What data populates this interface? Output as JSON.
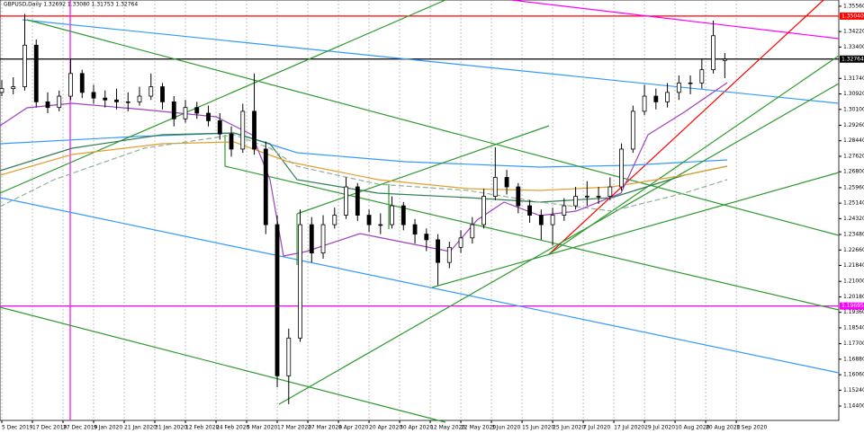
{
  "chart_data": {
    "type": "candlestick",
    "title": "GBPUSD,Daily  1.32692 1.33080 1.31753 1.32764",
    "x": [
      0,
      3,
      6,
      9,
      12,
      15,
      18,
      21,
      24,
      27,
      30,
      33,
      36,
      39,
      42,
      45,
      48,
      51,
      54,
      57,
      60,
      63,
      66,
      69,
      72,
      75,
      78,
      81,
      84,
      87,
      90,
      93,
      96,
      99,
      102,
      105,
      108,
      111,
      114,
      117,
      120,
      123,
      126,
      129,
      132,
      135,
      138,
      141,
      144,
      147,
      150,
      153,
      156,
      159,
      162,
      165,
      168,
      171,
      174,
      177,
      180,
      183,
      186,
      189
    ],
    "open": [
      1.31,
      1.312,
      1.313,
      1.335,
      1.305,
      1.302,
      1.308,
      1.32,
      1.31,
      1.307,
      1.306,
      1.305,
      1.305,
      1.308,
      1.313,
      1.305,
      1.296,
      1.302,
      1.299,
      1.295,
      1.288,
      1.28,
      1.3,
      1.28,
      1.24,
      1.16,
      1.18,
      1.24,
      1.225,
      1.24,
      1.245,
      1.26,
      1.245,
      1.24,
      1.24,
      1.25,
      1.24,
      1.235,
      1.232,
      1.22,
      1.228,
      1.233,
      1.24,
      1.255,
      1.265,
      1.26,
      1.25,
      1.245,
      1.24,
      1.245,
      1.25,
      1.255,
      1.255,
      1.255,
      1.26,
      1.28,
      1.3,
      1.308,
      1.305,
      1.31,
      1.315,
      1.315,
      1.322,
      1.32692
    ],
    "high": [
      1.3165,
      1.318,
      1.3515,
      1.338,
      1.31,
      1.311,
      1.328,
      1.322,
      1.314,
      1.311,
      1.312,
      1.31,
      1.313,
      1.32,
      1.315,
      1.308,
      1.306,
      1.305,
      1.303,
      1.299,
      1.292,
      1.304,
      1.32,
      1.284,
      1.245,
      1.185,
      1.248,
      1.244,
      1.245,
      1.249,
      1.265,
      1.262,
      1.248,
      1.246,
      1.255,
      1.252,
      1.243,
      1.238,
      1.235,
      1.231,
      1.237,
      1.244,
      1.259,
      1.281,
      1.269,
      1.262,
      1.253,
      1.248,
      1.249,
      1.254,
      1.26,
      1.263,
      1.26,
      1.265,
      1.283,
      1.303,
      1.314,
      1.312,
      1.315,
      1.319,
      1.319,
      1.328,
      1.348,
      1.3308
    ],
    "low": [
      1.308,
      1.309,
      1.311,
      1.302,
      1.299,
      1.3,
      1.306,
      1.307,
      1.304,
      1.302,
      1.301,
      1.3,
      1.303,
      1.306,
      1.301,
      1.292,
      1.294,
      1.296,
      1.292,
      1.285,
      1.276,
      1.278,
      1.277,
      1.235,
      1.154,
      1.145,
      1.178,
      1.22,
      1.222,
      1.238,
      1.243,
      1.242,
      1.236,
      1.235,
      1.238,
      1.237,
      1.23,
      1.226,
      1.208,
      1.217,
      1.225,
      1.23,
      1.238,
      1.253,
      1.256,
      1.246,
      1.241,
      1.232,
      1.229,
      1.242,
      1.248,
      1.25,
      1.251,
      1.253,
      1.258,
      1.278,
      1.298,
      1.301,
      1.302,
      1.306,
      1.309,
      1.312,
      1.32,
      1.31753
    ],
    "close": [
      1.312,
      1.313,
      1.335,
      1.305,
      1.302,
      1.308,
      1.32,
      1.31,
      1.307,
      1.306,
      1.305,
      1.305,
      1.308,
      1.313,
      1.305,
      1.296,
      1.302,
      1.299,
      1.295,
      1.288,
      1.28,
      1.3,
      1.28,
      1.24,
      1.16,
      1.18,
      1.24,
      1.225,
      1.24,
      1.245,
      1.26,
      1.245,
      1.24,
      1.24,
      1.25,
      1.24,
      1.235,
      1.232,
      1.22,
      1.228,
      1.233,
      1.24,
      1.255,
      1.265,
      1.26,
      1.25,
      1.245,
      1.24,
      1.245,
      1.25,
      1.255,
      1.255,
      1.255,
      1.26,
      1.28,
      1.3,
      1.308,
      1.305,
      1.31,
      1.315,
      1.315,
      1.322,
      1.34,
      1.32764
    ],
    "xlim": [
      -0.47,
      218.8
    ],
    "ylim": [
      1.1364,
      1.3589
    ],
    "xticks": [
      {
        "value": 0,
        "label": "5 Dec 2019"
      },
      {
        "value": 8,
        "label": "17 Dec 2019"
      },
      {
        "value": 16,
        "label": "27 Dec 2019"
      },
      {
        "value": 24,
        "label": "9 Jan 2020"
      },
      {
        "value": 32,
        "label": "21 Jan 2020"
      },
      {
        "value": 40,
        "label": "31 Jan 2020"
      },
      {
        "value": 48,
        "label": "12 Feb 2020"
      },
      {
        "value": 56,
        "label": "24 Feb 2020"
      },
      {
        "value": 64,
        "label": "5 Mar 2020"
      },
      {
        "value": 72,
        "label": "17 Mar 2020"
      },
      {
        "value": 80,
        "label": "27 Mar 2020"
      },
      {
        "value": 88,
        "label": "8 Apr 2020"
      },
      {
        "value": 96,
        "label": "20 Apr 2020"
      },
      {
        "value": 104,
        "label": "30 Apr 2020"
      },
      {
        "value": 112,
        "label": "12 May 2020"
      },
      {
        "value": 120,
        "label": "22 May 2020"
      },
      {
        "value": 128,
        "label": "3 Jun 2020"
      },
      {
        "value": 136,
        "label": "15 Jun 2020"
      },
      {
        "value": 144,
        "label": "25 Jun 2020"
      },
      {
        "value": 152,
        "label": "7 Jul 2020"
      },
      {
        "value": 160,
        "label": "17 Jul 2020"
      },
      {
        "value": 168,
        "label": "29 Jul 2020"
      },
      {
        "value": 176,
        "label": "10 Aug 2020"
      },
      {
        "value": 184,
        "label": "20 Aug 2020"
      },
      {
        "value": 192,
        "label": "1 Sep 2020"
      }
    ],
    "yticks": [
      {
        "value": 1.3556,
        "label": "1.35560"
      },
      {
        "value": 1.3422,
        "label": "1.34220"
      },
      {
        "value": 1.334,
        "label": "1.33400"
      },
      {
        "value": 1.3174,
        "label": "1.31740"
      },
      {
        "value": 1.3092,
        "label": "1.30920"
      },
      {
        "value": 1.301,
        "label": "1.30100"
      },
      {
        "value": 1.2926,
        "label": "1.29260"
      },
      {
        "value": 1.2844,
        "label": "1.28440"
      },
      {
        "value": 1.2762,
        "label": "1.27620"
      },
      {
        "value": 1.268,
        "label": "1.26800"
      },
      {
        "value": 1.2596,
        "label": "1.25960"
      },
      {
        "value": 1.2514,
        "label": "1.25140"
      },
      {
        "value": 1.2432,
        "label": "1.24320"
      },
      {
        "value": 1.2348,
        "label": "1.23480"
      },
      {
        "value": 1.2266,
        "label": "1.22660"
      },
      {
        "value": 1.2184,
        "label": "1.21840"
      },
      {
        "value": 1.21,
        "label": "1.21000"
      },
      {
        "value": 1.2018,
        "label": "1.20180"
      },
      {
        "value": 1.1936,
        "label": "1.19360"
      },
      {
        "value": 1.1854,
        "label": "1.18540"
      },
      {
        "value": 1.177,
        "label": "1.17700"
      },
      {
        "value": 1.1688,
        "label": "1.16880"
      },
      {
        "value": 1.1606,
        "label": "1.16060"
      },
      {
        "value": 1.1524,
        "label": "1.15240"
      },
      {
        "value": 1.144,
        "label": "1.14400"
      }
    ],
    "levels": [
      {
        "value": 1.3504,
        "label": "1.35040",
        "color": "#ff0000"
      },
      {
        "value": 1.19695,
        "label": "1.19695",
        "color": "#ff00ff"
      },
      {
        "value": 1.32764,
        "label": "1.32764",
        "color": "#000000"
      }
    ],
    "grid": true
  }
}
